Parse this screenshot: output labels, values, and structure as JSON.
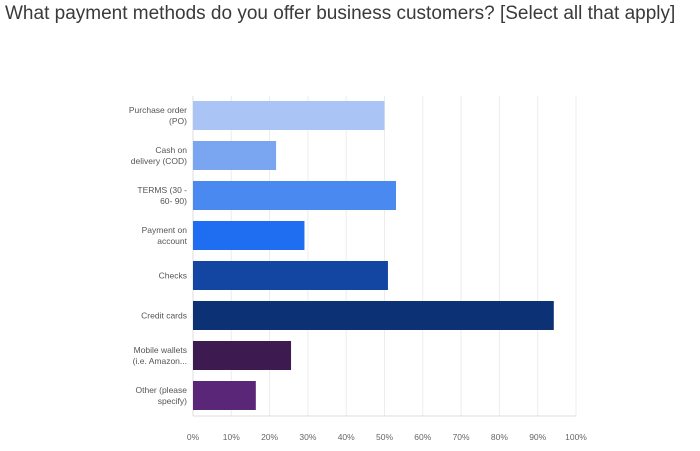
{
  "chart_data": {
    "type": "bar",
    "orientation": "horizontal",
    "title": "What payment methods do you offer business customers? [Select all that apply]",
    "categories": [
      [
        "Purchase order",
        "(PO)"
      ],
      [
        "Cash on",
        "delivery (COD)"
      ],
      [
        "TERMS (30 -",
        "60- 90)"
      ],
      [
        "Payment on",
        "account"
      ],
      [
        "Checks"
      ],
      [
        "Credit cards"
      ],
      [
        "Mobile wallets",
        "(i.e. Amazon..."
      ],
      [
        "Other (please",
        "specify)"
      ]
    ],
    "values": [
      50.0,
      21.7,
      53.0,
      29.1,
      50.9,
      94.2,
      25.6,
      16.4
    ],
    "colors": [
      "#a9c4f5",
      "#7aa5f0",
      "#4a8af0",
      "#1f6ef2",
      "#1346a3",
      "#0c3174",
      "#3d1a4f",
      "#5a2677"
    ],
    "xlim": [
      0,
      100
    ],
    "xticks": [
      "0%",
      "10%",
      "20%",
      "30%",
      "40%",
      "50%",
      "60%",
      "70%",
      "80%",
      "90%",
      "100%"
    ],
    "xlabel": "",
    "ylabel": "",
    "grid": true
  }
}
